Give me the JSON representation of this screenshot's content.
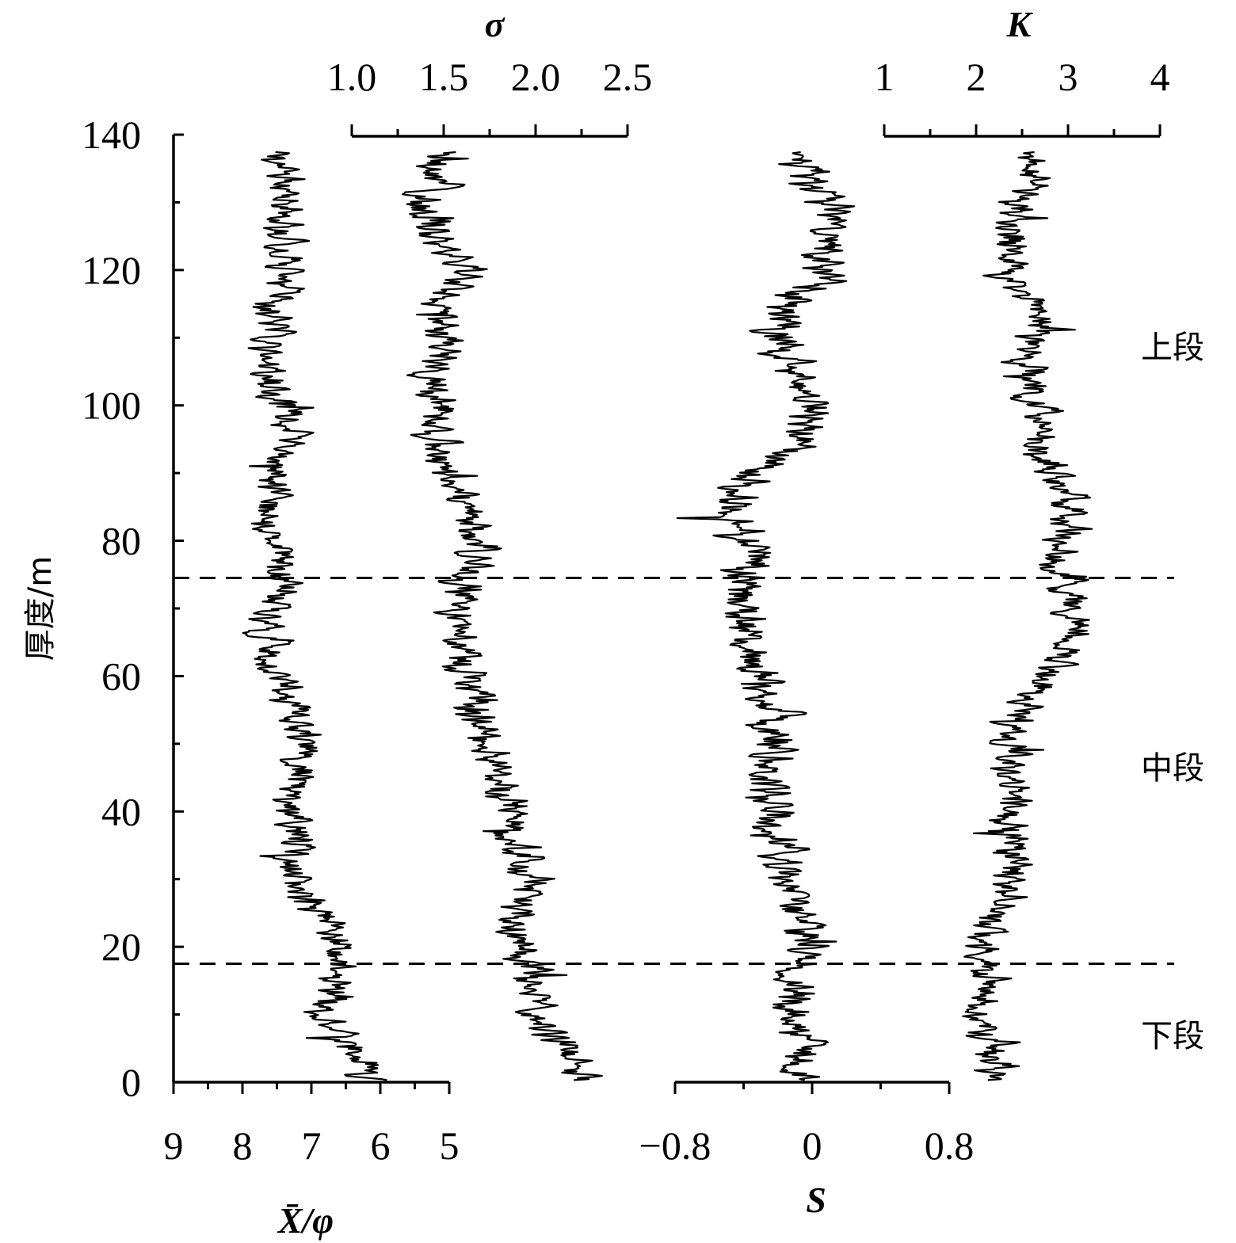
{
  "chart_data": {
    "type": "line",
    "y_axis": {
      "label": "厚度/m",
      "range": [
        0,
        140
      ],
      "major_ticks": [
        0,
        20,
        40,
        60,
        80,
        100,
        120,
        140
      ],
      "tick_labels": [
        "0",
        "20",
        "40",
        "60",
        "80",
        "100",
        "120",
        "140"
      ],
      "minor_step": 10
    },
    "axes": {
      "mean": {
        "label": "X̄/φ",
        "position": "bottom-left",
        "range": [
          9,
          5
        ],
        "reversed": true,
        "tick_labels": [
          "9",
          "8",
          "7",
          "6",
          "5"
        ]
      },
      "sigma": {
        "label": "σ",
        "position": "top-left",
        "range": [
          1.0,
          2.5
        ],
        "tick_labels": [
          "1.0",
          "1.5",
          "2.0",
          "2.5"
        ]
      },
      "skewness": {
        "label": "S",
        "position": "bottom-right",
        "range": [
          -0.8,
          0.8
        ],
        "tick_labels": [
          "−0.8",
          "0",
          "0.8"
        ]
      },
      "kurtosis": {
        "label": "K",
        "position": "top-right",
        "range": [
          1,
          4
        ],
        "tick_labels": [
          "1",
          "2",
          "3",
          "4"
        ]
      }
    },
    "boundaries_m": [
      17.5,
      74.5
    ],
    "segments": [
      "上段",
      "中段",
      "下段"
    ],
    "series": [
      {
        "key": "mean",
        "baseline": [
          [
            0,
            6.1
          ],
          [
            10,
            6.85
          ],
          [
            18,
            6.45
          ],
          [
            25,
            6.85
          ],
          [
            30,
            7.25
          ],
          [
            35,
            7.25
          ],
          [
            45,
            7.2
          ],
          [
            50,
            7.05
          ],
          [
            55,
            7.2
          ],
          [
            60,
            7.5
          ],
          [
            65,
            7.65
          ],
          [
            70,
            7.5
          ],
          [
            75,
            7.45
          ],
          [
            80,
            7.5
          ],
          [
            85,
            7.6
          ],
          [
            90,
            7.5
          ],
          [
            95,
            7.35
          ],
          [
            100,
            7.4
          ],
          [
            105,
            7.6
          ],
          [
            110,
            7.6
          ],
          [
            115,
            7.55
          ],
          [
            120,
            7.4
          ],
          [
            125,
            7.35
          ],
          [
            130,
            7.4
          ],
          [
            137,
            7.5
          ]
        ]
      },
      {
        "key": "sigma",
        "baseline": [
          [
            0,
            2.3
          ],
          [
            10,
            2.0
          ],
          [
            18,
            1.95
          ],
          [
            25,
            1.9
          ],
          [
            30,
            1.95
          ],
          [
            35,
            1.9
          ],
          [
            45,
            1.8
          ],
          [
            50,
            1.7
          ],
          [
            55,
            1.7
          ],
          [
            60,
            1.65
          ],
          [
            65,
            1.6
          ],
          [
            70,
            1.55
          ],
          [
            75,
            1.65
          ],
          [
            80,
            1.7
          ],
          [
            85,
            1.65
          ],
          [
            90,
            1.55
          ],
          [
            95,
            1.5
          ],
          [
            100,
            1.45
          ],
          [
            105,
            1.45
          ],
          [
            110,
            1.5
          ],
          [
            115,
            1.45
          ],
          [
            120,
            1.65
          ],
          [
            125,
            1.45
          ],
          [
            130,
            1.4
          ],
          [
            137,
            1.5
          ]
        ]
      },
      {
        "key": "skewness",
        "baseline": [
          [
            0,
            -0.05
          ],
          [
            10,
            -0.1
          ],
          [
            18,
            -0.05
          ],
          [
            25,
            -0.1
          ],
          [
            30,
            -0.15
          ],
          [
            35,
            -0.15
          ],
          [
            45,
            -0.25
          ],
          [
            50,
            -0.25
          ],
          [
            55,
            -0.2
          ],
          [
            60,
            -0.3
          ],
          [
            65,
            -0.35
          ],
          [
            70,
            -0.4
          ],
          [
            75,
            -0.4
          ],
          [
            80,
            -0.4
          ],
          [
            85,
            -0.45
          ],
          [
            90,
            -0.35
          ],
          [
            95,
            -0.05
          ],
          [
            100,
            0.0
          ],
          [
            105,
            -0.1
          ],
          [
            110,
            -0.25
          ],
          [
            115,
            -0.1
          ],
          [
            120,
            0.05
          ],
          [
            125,
            0.1
          ],
          [
            130,
            0.05
          ],
          [
            137,
            -0.05
          ]
        ]
      },
      {
        "key": "kurtosis",
        "baseline": [
          [
            0,
            2.3
          ],
          [
            10,
            2.1
          ],
          [
            18,
            2.1
          ],
          [
            25,
            2.2
          ],
          [
            30,
            2.4
          ],
          [
            35,
            2.3
          ],
          [
            45,
            2.45
          ],
          [
            50,
            2.4
          ],
          [
            55,
            2.5
          ],
          [
            60,
            2.75
          ],
          [
            65,
            3.0
          ],
          [
            70,
            3.1
          ],
          [
            75,
            2.95
          ],
          [
            80,
            2.9
          ],
          [
            85,
            3.05
          ],
          [
            90,
            2.8
          ],
          [
            95,
            2.65
          ],
          [
            100,
            2.7
          ],
          [
            105,
            2.6
          ],
          [
            110,
            2.7
          ],
          [
            115,
            2.6
          ],
          [
            120,
            2.3
          ],
          [
            125,
            2.4
          ],
          [
            130,
            2.5
          ],
          [
            137,
            2.7
          ]
        ]
      }
    ]
  }
}
